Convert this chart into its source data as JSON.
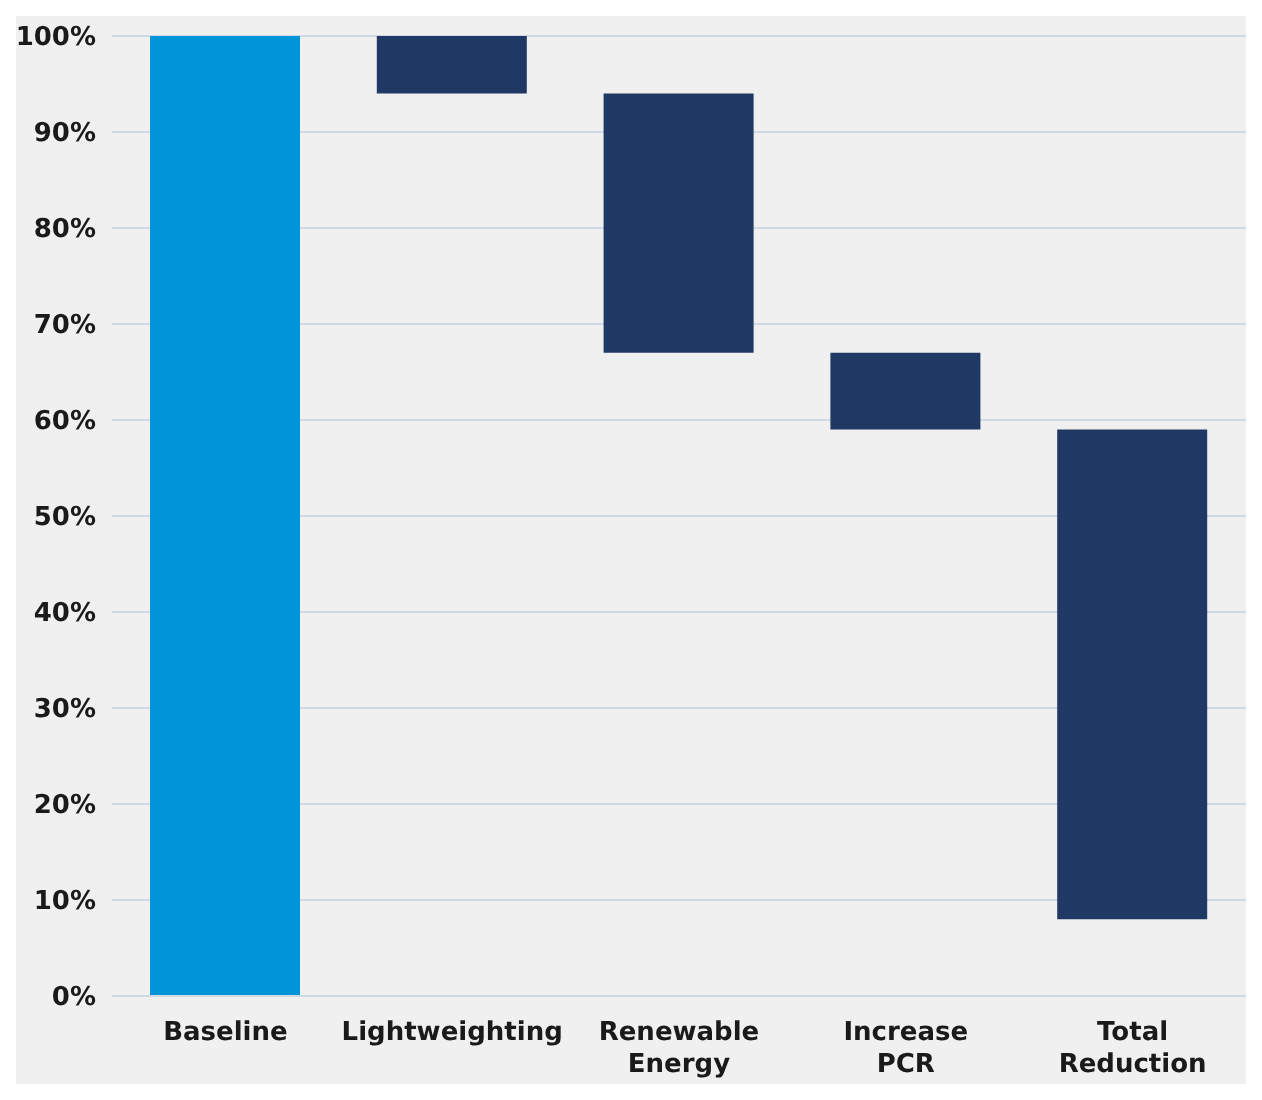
{
  "chart_data": {
    "type": "bar",
    "categories": [
      "Baseline",
      "Lightweighting",
      "Renewable Energy",
      "Increase PCR",
      "Total Reduction"
    ],
    "values": [
      100,
      6,
      27,
      8,
      51
    ],
    "base": [
      0,
      94,
      67,
      59,
      8
    ],
    "colors": [
      "#0095d9",
      "#1f3864",
      "#1f3864",
      "#1f3864",
      "#1f3864"
    ],
    "ylim": [
      0,
      100
    ],
    "yticks": [
      {
        "value": 0,
        "label": "0%"
      },
      {
        "value": 10,
        "label": "10%"
      },
      {
        "value": 20,
        "label": "20%"
      },
      {
        "value": 30,
        "label": "30%"
      },
      {
        "value": 40,
        "label": "40%"
      },
      {
        "value": 50,
        "label": "50%"
      },
      {
        "value": 60,
        "label": "60%"
      },
      {
        "value": 70,
        "label": "70%"
      },
      {
        "value": 80,
        "label": "80%"
      },
      {
        "value": 90,
        "label": "90%"
      },
      {
        "value": 100,
        "label": "100%"
      }
    ],
    "grid": "y"
  }
}
